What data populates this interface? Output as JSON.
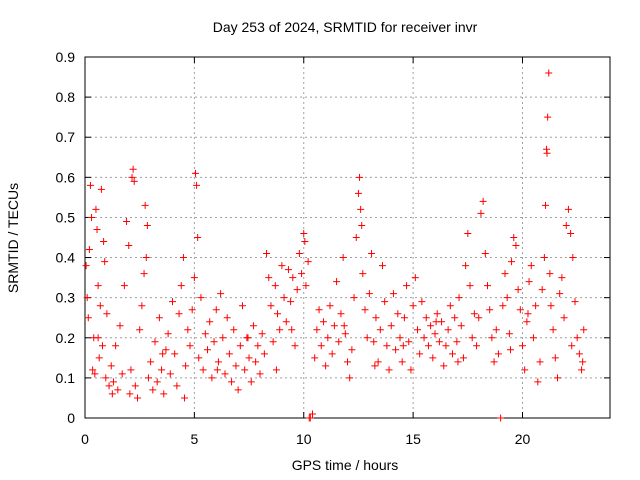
{
  "chart_data": {
    "type": "scatter",
    "title": "Day 253 of 2024, SRMTID for receiver invr",
    "xlabel": "GPS time / hours",
    "ylabel": "SRMTID / TECUs",
    "xlim": [
      0,
      24
    ],
    "ylim": [
      0,
      0.9
    ],
    "x_ticks": [
      0,
      5,
      10,
      15,
      20
    ],
    "y_ticks": [
      0,
      0.1,
      0.2,
      0.3,
      0.4,
      0.5,
      0.6,
      0.7,
      0.8,
      0.9
    ],
    "x_tick_labels": [
      "0",
      "5",
      "10",
      "15",
      "20"
    ],
    "y_tick_labels": [
      "0",
      "0.1",
      "0.2",
      "0.3",
      "0.4",
      "0.5",
      "0.6",
      "0.7",
      "0.8",
      "0.9"
    ],
    "grid": true,
    "marker": "+",
    "color": "#ff0000",
    "series": [
      {
        "name": "SRMTID",
        "points": [
          [
            0.05,
            0.38
          ],
          [
            0.1,
            0.3
          ],
          [
            0.15,
            0.25
          ],
          [
            0.2,
            0.42
          ],
          [
            0.25,
            0.58
          ],
          [
            0.3,
            0.5
          ],
          [
            0.35,
            0.12
          ],
          [
            0.4,
            0.2
          ],
          [
            0.45,
            0.11
          ],
          [
            0.5,
            0.52
          ],
          [
            0.55,
            0.47
          ],
          [
            0.6,
            0.33
          ],
          [
            0.65,
            0.15
          ],
          [
            0.7,
            0.28
          ],
          [
            0.75,
            0.57
          ],
          [
            0.8,
            0.18
          ],
          [
            0.85,
            0.44
          ],
          [
            0.9,
            0.39
          ],
          [
            0.95,
            0.1
          ],
          [
            1.0,
            0.26
          ],
          [
            1.1,
            0.08
          ],
          [
            1.2,
            0.13
          ],
          [
            1.3,
            0.09
          ],
          [
            1.4,
            0.18
          ],
          [
            1.5,
            0.07
          ],
          [
            1.6,
            0.23
          ],
          [
            1.7,
            0.11
          ],
          [
            1.8,
            0.33
          ],
          [
            1.9,
            0.49
          ],
          [
            2.0,
            0.43
          ],
          [
            2.05,
            0.06
          ],
          [
            2.1,
            0.12
          ],
          [
            2.15,
            0.6
          ],
          [
            2.2,
            0.62
          ],
          [
            2.25,
            0.59
          ],
          [
            2.3,
            0.08
          ],
          [
            2.4,
            0.05
          ],
          [
            2.5,
            0.22
          ],
          [
            2.6,
            0.28
          ],
          [
            2.7,
            0.36
          ],
          [
            2.75,
            0.53
          ],
          [
            2.8,
            0.4
          ],
          [
            2.85,
            0.48
          ],
          [
            2.9,
            0.1
          ],
          [
            3.0,
            0.14
          ],
          [
            3.1,
            0.07
          ],
          [
            3.2,
            0.19
          ],
          [
            3.3,
            0.09
          ],
          [
            3.4,
            0.25
          ],
          [
            3.5,
            0.12
          ],
          [
            3.6,
            0.06
          ],
          [
            3.7,
            0.17
          ],
          [
            3.8,
            0.21
          ],
          [
            3.9,
            0.11
          ],
          [
            4.0,
            0.29
          ],
          [
            4.1,
            0.16
          ],
          [
            4.2,
            0.08
          ],
          [
            4.3,
            0.26
          ],
          [
            4.4,
            0.33
          ],
          [
            4.5,
            0.4
          ],
          [
            4.55,
            0.05
          ],
          [
            4.6,
            0.13
          ],
          [
            4.7,
            0.22
          ],
          [
            4.8,
            0.18
          ],
          [
            4.9,
            0.27
          ],
          [
            5.0,
            0.35
          ],
          [
            5.05,
            0.61
          ],
          [
            5.1,
            0.58
          ],
          [
            5.15,
            0.45
          ],
          [
            5.2,
            0.15
          ],
          [
            5.3,
            0.3
          ],
          [
            5.4,
            0.12
          ],
          [
            5.5,
            0.21
          ],
          [
            5.6,
            0.17
          ],
          [
            5.7,
            0.24
          ],
          [
            5.8,
            0.1
          ],
          [
            5.9,
            0.19
          ],
          [
            6.0,
            0.27
          ],
          [
            6.1,
            0.14
          ],
          [
            6.2,
            0.31
          ],
          [
            6.3,
            0.2
          ],
          [
            6.4,
            0.11
          ],
          [
            6.5,
            0.25
          ],
          [
            6.6,
            0.16
          ],
          [
            6.7,
            0.09
          ],
          [
            6.8,
            0.22
          ],
          [
            6.9,
            0.13
          ],
          [
            7.0,
            0.07
          ],
          [
            7.1,
            0.18
          ],
          [
            7.2,
            0.28
          ],
          [
            7.3,
            0.12
          ],
          [
            7.4,
            0.2
          ],
          [
            7.5,
            0.15
          ],
          [
            7.6,
            0.09
          ],
          [
            7.7,
            0.23
          ],
          [
            7.8,
            0.14
          ],
          [
            7.9,
            0.18
          ],
          [
            8.0,
            0.11
          ],
          [
            8.1,
            0.21
          ],
          [
            8.2,
            0.16
          ],
          [
            8.3,
            0.41
          ],
          [
            8.4,
            0.35
          ],
          [
            8.5,
            0.28
          ],
          [
            8.6,
            0.19
          ],
          [
            8.7,
            0.33
          ],
          [
            8.8,
            0.26
          ],
          [
            8.9,
            0.22
          ],
          [
            9.0,
            0.38
          ],
          [
            9.1,
            0.3
          ],
          [
            9.2,
            0.24
          ],
          [
            9.3,
            0.37
          ],
          [
            9.4,
            0.29
          ],
          [
            9.5,
            0.35
          ],
          [
            9.6,
            0.18
          ],
          [
            9.7,
            0.32
          ],
          [
            9.8,
            0.41
          ],
          [
            9.9,
            0.36
          ],
          [
            10.0,
            0.46
          ],
          [
            10.05,
            0.44
          ],
          [
            10.1,
            0.33
          ],
          [
            10.2,
            0.39
          ],
          [
            10.25,
            0.0
          ],
          [
            10.3,
            0.0
          ],
          [
            10.4,
            0.01
          ],
          [
            10.5,
            0.15
          ],
          [
            10.6,
            0.22
          ],
          [
            10.7,
            0.27
          ],
          [
            10.8,
            0.18
          ],
          [
            10.9,
            0.24
          ],
          [
            11.0,
            0.13
          ],
          [
            11.1,
            0.2
          ],
          [
            11.2,
            0.28
          ],
          [
            11.3,
            0.16
          ],
          [
            11.4,
            0.23
          ],
          [
            11.5,
            0.34
          ],
          [
            11.6,
            0.19
          ],
          [
            11.7,
            0.26
          ],
          [
            11.8,
            0.4
          ],
          [
            11.9,
            0.21
          ],
          [
            12.0,
            0.14
          ],
          [
            12.1,
            0.1
          ],
          [
            12.2,
            0.17
          ],
          [
            12.3,
            0.3
          ],
          [
            12.4,
            0.45
          ],
          [
            12.5,
            0.56
          ],
          [
            12.55,
            0.6
          ],
          [
            12.6,
            0.52
          ],
          [
            12.65,
            0.48
          ],
          [
            12.7,
            0.36
          ],
          [
            12.8,
            0.27
          ],
          [
            12.9,
            0.2
          ],
          [
            13.0,
            0.31
          ],
          [
            13.1,
            0.41
          ],
          [
            13.2,
            0.19
          ],
          [
            13.3,
            0.25
          ],
          [
            13.4,
            0.14
          ],
          [
            13.5,
            0.22
          ],
          [
            13.6,
            0.38
          ],
          [
            13.7,
            0.29
          ],
          [
            13.8,
            0.18
          ],
          [
            13.9,
            0.12
          ],
          [
            14.0,
            0.23
          ],
          [
            14.1,
            0.31
          ],
          [
            14.2,
            0.17
          ],
          [
            14.3,
            0.26
          ],
          [
            14.4,
            0.2
          ],
          [
            14.5,
            0.14
          ],
          [
            14.6,
            0.25
          ],
          [
            14.7,
            0.33
          ],
          [
            14.8,
            0.19
          ],
          [
            14.9,
            0.12
          ],
          [
            15.0,
            0.28
          ],
          [
            15.1,
            0.35
          ],
          [
            15.2,
            0.22
          ],
          [
            15.3,
            0.16
          ],
          [
            15.4,
            0.29
          ],
          [
            15.5,
            0.2
          ],
          [
            15.6,
            0.25
          ],
          [
            15.7,
            0.18
          ],
          [
            15.8,
            0.23
          ],
          [
            15.9,
            0.15
          ],
          [
            16.0,
            0.21
          ],
          [
            16.1,
            0.26
          ],
          [
            16.2,
            0.19
          ],
          [
            16.3,
            0.24
          ],
          [
            16.4,
            0.13
          ],
          [
            16.5,
            0.18
          ],
          [
            16.6,
            0.22
          ],
          [
            16.7,
            0.28
          ],
          [
            16.8,
            0.16
          ],
          [
            16.9,
            0.25
          ],
          [
            17.0,
            0.19
          ],
          [
            17.1,
            0.3
          ],
          [
            17.2,
            0.23
          ],
          [
            17.3,
            0.15
          ],
          [
            17.4,
            0.38
          ],
          [
            17.5,
            0.46
          ],
          [
            17.6,
            0.33
          ],
          [
            17.7,
            0.2
          ],
          [
            17.8,
            0.26
          ],
          [
            17.9,
            0.18
          ],
          [
            18.0,
            0.25
          ],
          [
            18.1,
            0.51
          ],
          [
            18.2,
            0.54
          ],
          [
            18.3,
            0.41
          ],
          [
            18.4,
            0.33
          ],
          [
            18.5,
            0.27
          ],
          [
            18.6,
            0.2
          ],
          [
            18.7,
            0.14
          ],
          [
            18.8,
            0.22
          ],
          [
            18.9,
            0.16
          ],
          [
            19.0,
            0.0
          ],
          [
            19.1,
            0.28
          ],
          [
            19.2,
            0.36
          ],
          [
            19.3,
            0.3
          ],
          [
            19.4,
            0.21
          ],
          [
            19.5,
            0.39
          ],
          [
            19.6,
            0.45
          ],
          [
            19.7,
            0.43
          ],
          [
            19.8,
            0.32
          ],
          [
            19.9,
            0.27
          ],
          [
            20.0,
            0.18
          ],
          [
            20.1,
            0.12
          ],
          [
            20.2,
            0.24
          ],
          [
            20.3,
            0.34
          ],
          [
            20.4,
            0.38
          ],
          [
            20.5,
            0.2
          ],
          [
            20.6,
            0.28
          ],
          [
            20.7,
            0.09
          ],
          [
            20.8,
            0.14
          ],
          [
            20.9,
            0.32
          ],
          [
            21.0,
            0.4
          ],
          [
            21.05,
            0.53
          ],
          [
            21.1,
            0.67
          ],
          [
            21.12,
            0.66
          ],
          [
            21.15,
            0.75
          ],
          [
            21.2,
            0.86
          ],
          [
            21.25,
            0.36
          ],
          [
            21.3,
            0.28
          ],
          [
            21.4,
            0.22
          ],
          [
            21.5,
            0.15
          ],
          [
            21.6,
            0.1
          ],
          [
            21.7,
            0.31
          ],
          [
            21.8,
            0.35
          ],
          [
            21.9,
            0.25
          ],
          [
            22.0,
            0.48
          ],
          [
            22.1,
            0.52
          ],
          [
            22.2,
            0.46
          ],
          [
            22.3,
            0.4
          ],
          [
            22.4,
            0.29
          ],
          [
            22.5,
            0.2
          ],
          [
            22.6,
            0.16
          ],
          [
            22.7,
            0.12
          ],
          [
            22.75,
            0.14
          ],
          [
            22.8,
            0.22
          ],
          [
            0.6,
            0.2
          ],
          [
            1.25,
            0.06
          ],
          [
            3.55,
            0.16
          ],
          [
            6.05,
            0.12
          ],
          [
            7.45,
            0.2
          ],
          [
            8.75,
            0.12
          ],
          [
            9.45,
            0.22
          ],
          [
            11.85,
            0.23
          ],
          [
            13.25,
            0.13
          ],
          [
            14.55,
            0.18
          ],
          [
            16.05,
            0.24
          ],
          [
            17.05,
            0.14
          ],
          [
            19.45,
            0.17
          ],
          [
            20.25,
            0.26
          ],
          [
            22.25,
            0.18
          ]
        ]
      }
    ]
  }
}
